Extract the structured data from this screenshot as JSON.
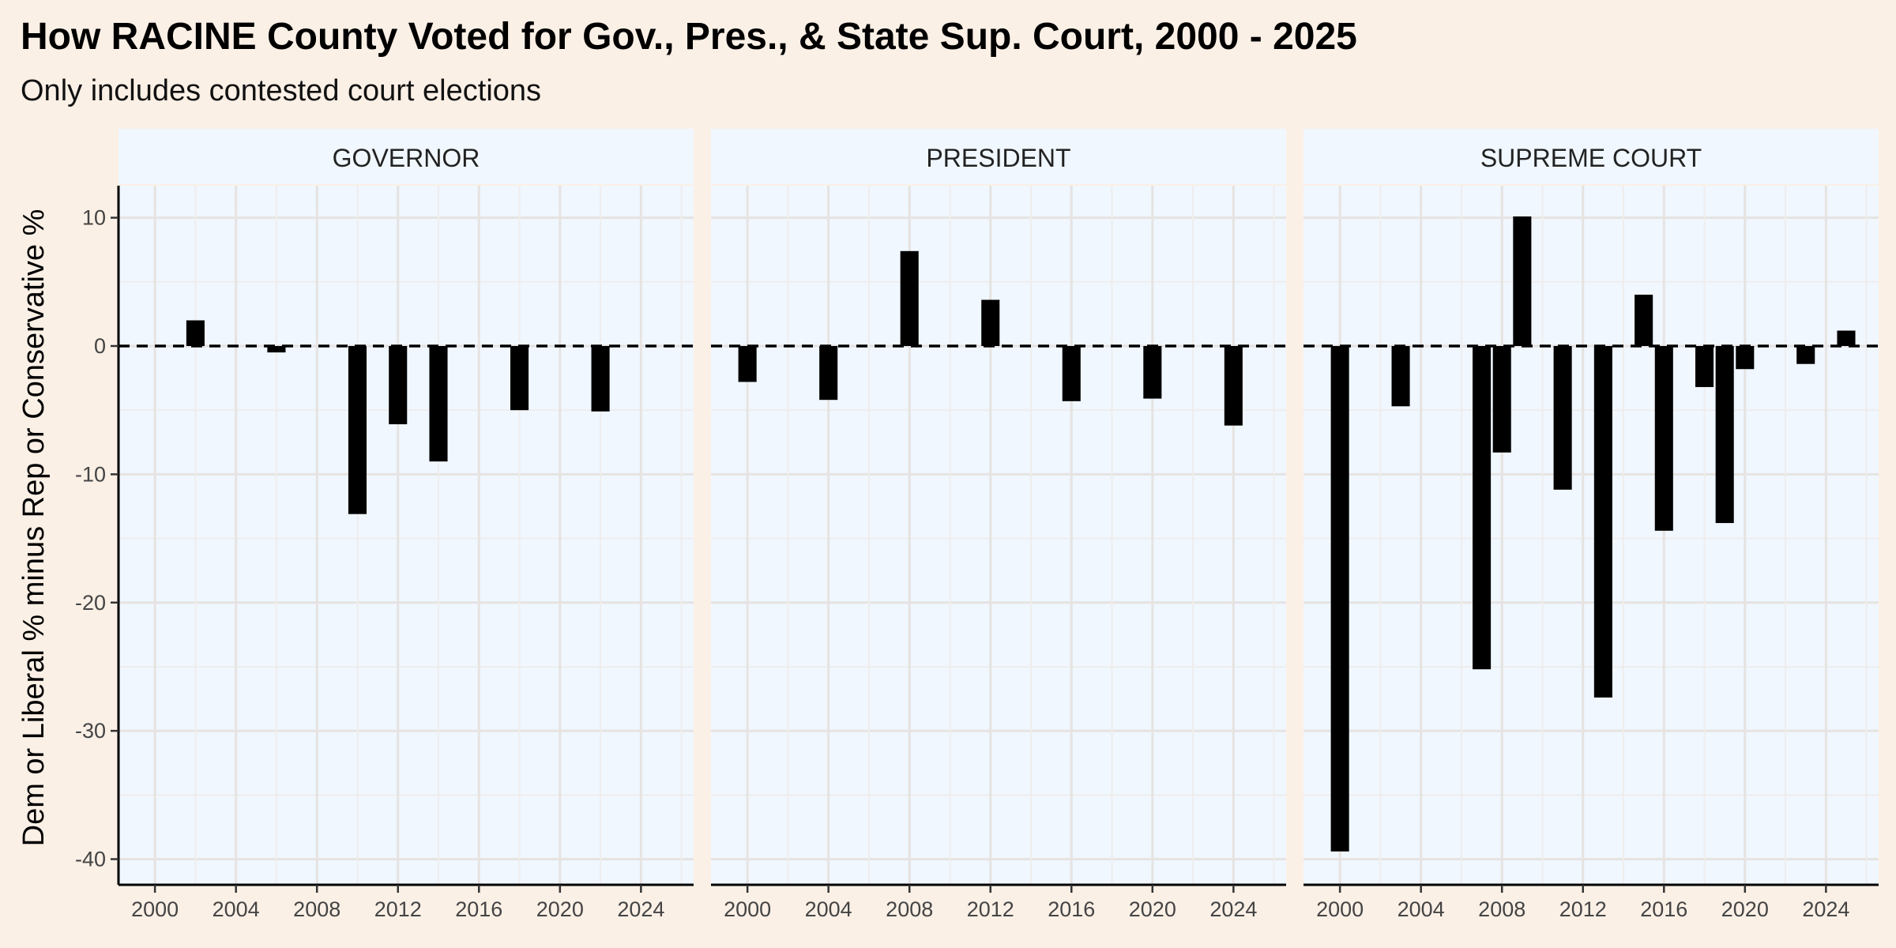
{
  "chart_data": {
    "type": "bar",
    "title": "How RACINE County Voted for Gov., Pres., & State Sup. Court, 2000 - 2025",
    "subtitle": "Only includes contested court elections",
    "ylabel": "Dem or Liberal % minus Rep or Conservative %",
    "xlabel": "",
    "ylim": [
      -42,
      12.5
    ],
    "xlim": [
      1998.2,
      2026.6
    ],
    "yticks": [
      10,
      0,
      -10,
      -20,
      -30,
      -40
    ],
    "xticks": [
      2000,
      2004,
      2008,
      2012,
      2016,
      2020,
      2024
    ],
    "reference_line": {
      "y": 0,
      "style": "dashed"
    },
    "grid": true,
    "colors": {
      "bars": "#000000",
      "panel_bg": "#f0f7ff",
      "page_bg": "#fbf0e6"
    },
    "panels": [
      {
        "name": "GOVERNOR",
        "x": [
          2002,
          2006,
          2010,
          2012,
          2014,
          2018,
          2022
        ],
        "values": [
          2.0,
          -0.5,
          -13.1,
          -6.1,
          -9.0,
          -5.0,
          -5.1
        ]
      },
      {
        "name": "PRESIDENT",
        "x": [
          2000,
          2004,
          2008,
          2012,
          2016,
          2020,
          2024
        ],
        "values": [
          -2.8,
          -4.2,
          7.4,
          3.6,
          -4.3,
          -4.1,
          -6.2
        ]
      },
      {
        "name": "SUPREME COURT",
        "x": [
          2000,
          2003,
          2007,
          2008,
          2009,
          2011,
          2013,
          2015,
          2016,
          2018,
          2019,
          2020,
          2023,
          2025
        ],
        "values": [
          -39.4,
          -4.7,
          -25.2,
          -8.3,
          10.1,
          -11.2,
          -27.4,
          4.0,
          -14.4,
          -3.2,
          -13.8,
          -1.8,
          -1.4,
          1.2
        ]
      }
    ]
  }
}
